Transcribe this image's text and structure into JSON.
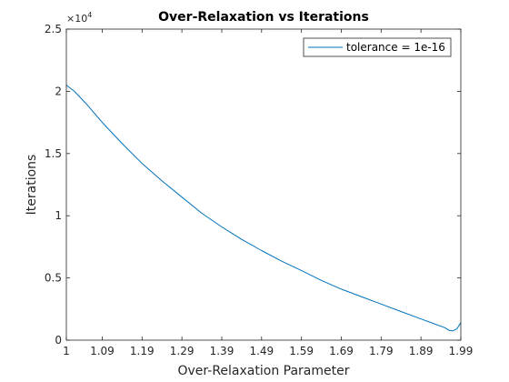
{
  "chart_data": {
    "type": "line",
    "title": "Over-Relaxation vs Iterations",
    "xlabel": "Over-Relaxation Parameter",
    "ylabel": "Iterations",
    "xlim": [
      1,
      1.99
    ],
    "ylim": [
      0,
      25000
    ],
    "xticks": [
      1,
      1.09,
      1.19,
      1.29,
      1.39,
      1.49,
      1.59,
      1.69,
      1.79,
      1.89,
      1.99
    ],
    "xtick_labels": [
      "1",
      "1.09",
      "1.19",
      "1.29",
      "1.39",
      "1.49",
      "1.59",
      "1.69",
      "1.79",
      "1.89",
      "1.99"
    ],
    "yticks": [
      0,
      5000,
      10000,
      15000,
      20000,
      25000
    ],
    "ytick_labels": [
      "0",
      "0.5",
      "1",
      "1.5",
      "2",
      "2.5"
    ],
    "y_multiplier": {
      "base": "×10",
      "exponent": "4"
    },
    "grid": false,
    "legend_position": "top-right",
    "series": [
      {
        "name": "tolerance = 1e-16",
        "color": "#0072bd",
        "x": [
          1.0,
          1.02,
          1.05,
          1.09,
          1.14,
          1.19,
          1.24,
          1.29,
          1.34,
          1.39,
          1.44,
          1.49,
          1.54,
          1.59,
          1.64,
          1.69,
          1.74,
          1.79,
          1.84,
          1.89,
          1.92,
          1.95,
          1.96,
          1.97,
          1.98,
          1.99
        ],
        "values": [
          20500,
          20000,
          19000,
          17500,
          15800,
          14200,
          12800,
          11500,
          10200,
          9100,
          8100,
          7200,
          6350,
          5600,
          4800,
          4100,
          3500,
          2900,
          2300,
          1700,
          1350,
          1000,
          800,
          750,
          900,
          1400
        ]
      }
    ]
  }
}
